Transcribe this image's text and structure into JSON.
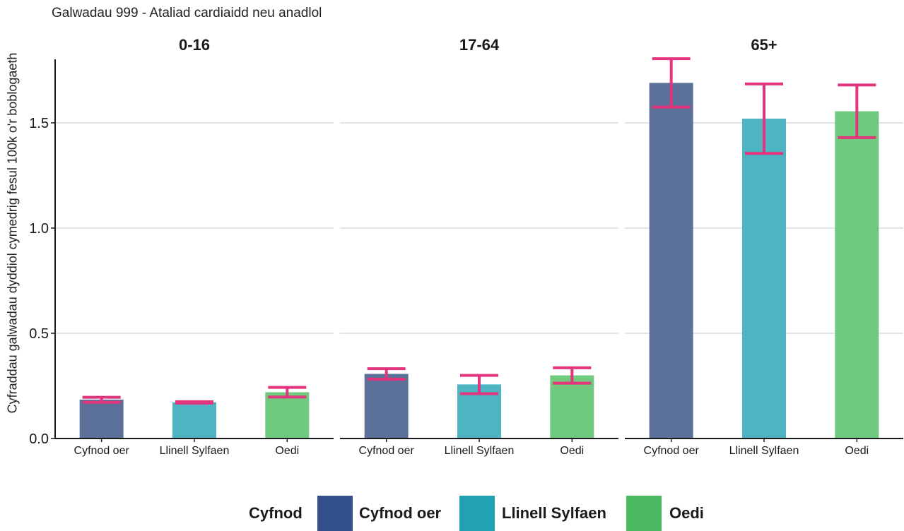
{
  "chart_data": {
    "type": "bar",
    "title": "Galwadau 999 - Ataliad cardiaidd neu anadlol",
    "ylabel": "Cyfraddau galwadau dyddiol cymedrig fesul 100k o'r boblogaeth",
    "xlabel": "",
    "ylim": [
      0,
      1.8
    ],
    "yticks": [
      "0.0",
      "0.5",
      "1.0",
      "1.5"
    ],
    "grid": true,
    "legend": {
      "title": "Cyfnod",
      "position": "bottom"
    },
    "categories": [
      "Cyfnod oer",
      "Llinell Sylfaen",
      "Oedi"
    ],
    "colors": {
      "Cyfnod oer": "#5b7199",
      "Llinell Sylfaen": "#4fb4c2",
      "Oedi": "#6fc97f",
      "error_bar": "#e2357e"
    },
    "legend_colors": {
      "Cyfnod oer": "#33508a",
      "Llinell Sylfaen": "#22a1b3",
      "Oedi": "#4cba61"
    },
    "panels": [
      {
        "title": "0-16",
        "values": [
          0.185,
          0.172,
          0.22
        ],
        "error_low": [
          0.172,
          0.168,
          0.197
        ],
        "error_high": [
          0.196,
          0.175,
          0.243
        ]
      },
      {
        "title": "17-64",
        "values": [
          0.307,
          0.257,
          0.3
        ],
        "error_low": [
          0.282,
          0.213,
          0.263
        ],
        "error_high": [
          0.332,
          0.3,
          0.336
        ]
      },
      {
        "title": "65+",
        "values": [
          1.69,
          1.52,
          1.555
        ],
        "error_low": [
          1.575,
          1.355,
          1.43
        ],
        "error_high": [
          1.805,
          1.685,
          1.68
        ]
      }
    ]
  }
}
